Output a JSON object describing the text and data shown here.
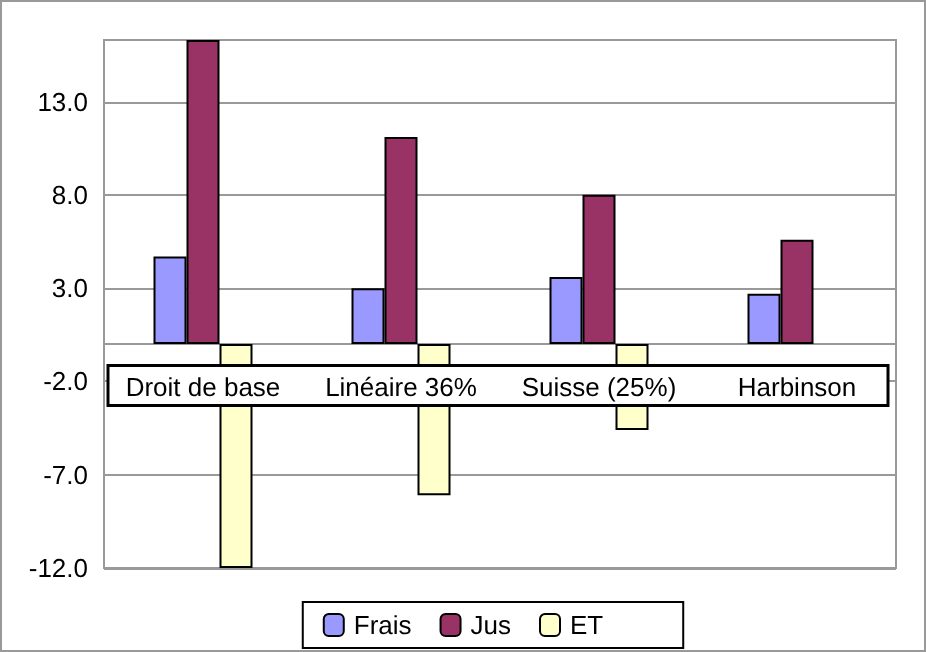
{
  "chart_data": {
    "type": "bar",
    "categories": [
      "Droit de base",
      "Linéaire 36%",
      "Suisse (25%)",
      "Harbinson"
    ],
    "series": [
      {
        "name": "Frais",
        "color": "#9999ff",
        "values": [
          4.7,
          3.0,
          3.6,
          2.7
        ]
      },
      {
        "name": "Jus",
        "color": "#993366",
        "values": [
          16.3,
          11.1,
          8.0,
          5.6
        ]
      },
      {
        "name": "ET",
        "color": "#ffffcc",
        "values": [
          -12,
          -8.1,
          -4.6,
          null
        ]
      }
    ],
    "ylim": [
      -12,
      16.3
    ],
    "yticks": [
      {
        "value": -12,
        "label": "-12.0"
      },
      {
        "value": -7,
        "label": "-7.0"
      },
      {
        "value": -2,
        "label": "-2.0"
      },
      {
        "value": 3,
        "label": "3.0"
      },
      {
        "value": 8,
        "label": "8.0"
      },
      {
        "value": 13,
        "label": "13.0"
      }
    ],
    "grid": "y",
    "legend": "bottom"
  }
}
